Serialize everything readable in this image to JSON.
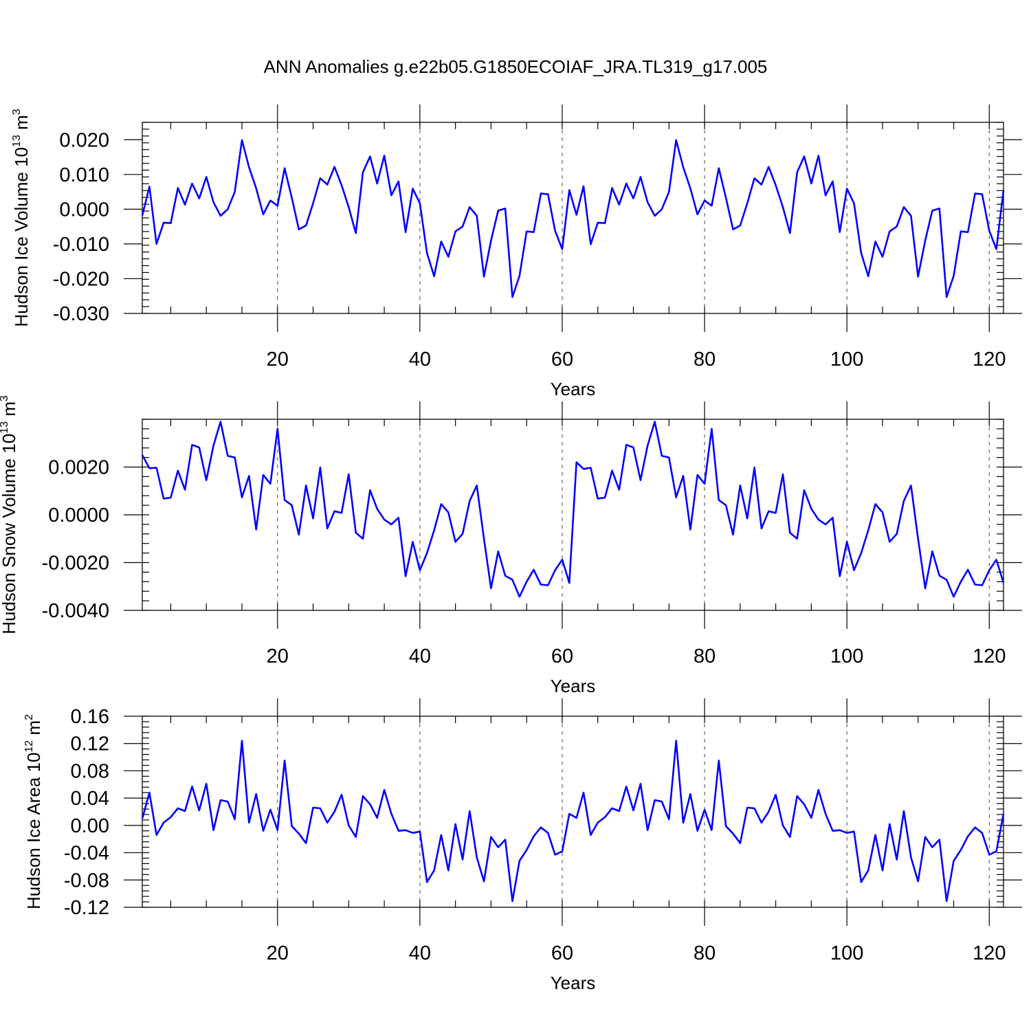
{
  "title": "ANN Anomalies g.e22b05.G1850ECOIAF_JRA.TL319_g17.005",
  "colors": {
    "series": "#0000ff",
    "axis": "#000000",
    "grid": "#555555"
  },
  "chart_data": [
    {
      "type": "line",
      "ylabel_main": "Hudson Ice Volume 10",
      "ylabel_exp": "13",
      "ylabel_unit": " m",
      "ylabel_unit_exp": "3",
      "xlabel": "Years",
      "xlim": [
        1,
        122
      ],
      "ylim": [
        -0.03,
        0.025
      ],
      "xticks": [
        20,
        40,
        60,
        80,
        100,
        120
      ],
      "xtick_labels": [
        "20",
        "40",
        "60",
        "80",
        "100",
        "120"
      ],
      "yticks": [
        -0.03,
        -0.02,
        -0.01,
        0.0,
        0.01,
        0.02
      ],
      "ytick_labels": [
        "-0.030",
        "-0.020",
        "-0.010",
        "0.000",
        "0.010",
        "0.020"
      ],
      "grid_x": [
        20,
        40,
        60,
        80,
        100,
        120
      ],
      "values": [
        -0.0018,
        0.0065,
        -0.01,
        -0.0039,
        -0.004,
        0.0061,
        0.0013,
        0.0074,
        0.0031,
        0.0093,
        0.002,
        -0.0019,
        0.0,
        0.005,
        0.0199,
        0.0121,
        0.006,
        -0.0015,
        0.0025,
        0.001,
        0.0118,
        0.0033,
        -0.0058,
        -0.0047,
        0.0017,
        0.0089,
        0.0071,
        0.0122,
        0.0069,
        0.0006,
        -0.0069,
        0.0106,
        0.0152,
        0.0074,
        0.0154,
        0.004,
        0.008,
        -0.0066,
        0.0059,
        0.0017,
        -0.0126,
        -0.0193,
        -0.0093,
        -0.0137,
        -0.0064,
        -0.005,
        0.0006,
        -0.0019,
        -0.0194,
        -0.009,
        -0.0004,
        0.0002,
        -0.0253,
        -0.0192,
        -0.0064,
        -0.0066,
        0.0045,
        0.0043,
        -0.0062,
        -0.0115,
        0.0055,
        -0.0016,
        0.0066,
        -0.0101,
        -0.0039,
        -0.004,
        0.0061,
        0.0013,
        0.0074,
        0.0031,
        0.0093,
        0.002,
        -0.0019,
        0.0,
        0.005,
        0.0199,
        0.0121,
        0.006,
        -0.0015,
        0.0025,
        0.001,
        0.0118,
        0.0033,
        -0.0058,
        -0.0047,
        0.0017,
        0.0089,
        0.0071,
        0.0122,
        0.0069,
        0.0006,
        -0.0069,
        0.0106,
        0.0152,
        0.0074,
        0.0154,
        0.004,
        0.008,
        -0.0066,
        0.0059,
        0.0017,
        -0.0126,
        -0.0193,
        -0.0093,
        -0.0137,
        -0.0064,
        -0.005,
        0.0006,
        -0.0019,
        -0.0194,
        -0.009,
        -0.0004,
        0.0002,
        -0.0253,
        -0.0192,
        -0.0064,
        -0.0066,
        0.0045,
        0.0043,
        -0.0062,
        -0.0115,
        0.0055
      ]
    },
    {
      "type": "line",
      "ylabel_main": "Hudson Snow Volume 10",
      "ylabel_exp": "13",
      "ylabel_unit": " m",
      "ylabel_unit_exp": "3",
      "xlabel": "Years",
      "xlim": [
        1,
        122
      ],
      "ylim": [
        -0.004,
        0.004
      ],
      "xticks": [
        20,
        40,
        60,
        80,
        100,
        120
      ],
      "xtick_labels": [
        "20",
        "40",
        "60",
        "80",
        "100",
        "120"
      ],
      "yticks": [
        -0.004,
        -0.002,
        0.0,
        0.002
      ],
      "ytick_labels": [
        "-0.0040",
        "-0.0020",
        "0.0000",
        "0.0020"
      ],
      "grid_x": [
        20,
        40,
        60,
        80,
        100,
        120
      ],
      "values": [
        0.0025,
        0.00195,
        0.00197,
        0.00068,
        0.00072,
        0.00185,
        0.00105,
        0.00293,
        0.00282,
        0.00145,
        0.0029,
        0.0039,
        0.00247,
        0.0024,
        0.00073,
        0.00163,
        -0.00062,
        0.00167,
        0.0013,
        0.0036,
        0.00062,
        0.0004,
        -0.00083,
        0.00123,
        -0.00015,
        0.00198,
        -0.00057,
        0.00015,
        8e-05,
        0.0017,
        -0.00075,
        -0.001,
        0.00103,
        0.00025,
        -0.0002,
        -0.0004,
        -0.00012,
        -0.00257,
        -0.00113,
        -0.00232,
        -0.0016,
        -0.00065,
        0.00045,
        0.0001,
        -0.00113,
        -0.0008,
        0.00058,
        0.00123,
        -0.001,
        -0.00308,
        -0.00153,
        -0.00255,
        -0.00272,
        -0.00343,
        -0.0028,
        -0.0023,
        -0.00292,
        -0.00295,
        -0.00232,
        -0.00188,
        -0.00285,
        0.0022,
        0.00192,
        0.00197,
        0.00068,
        0.00072,
        0.00185,
        0.00105,
        0.00293,
        0.00282,
        0.00145,
        0.0029,
        0.0039,
        0.00247,
        0.0024,
        0.00073,
        0.00163,
        -0.00062,
        0.00167,
        0.0013,
        0.0036,
        0.00062,
        0.0004,
        -0.00083,
        0.00123,
        -0.00015,
        0.00198,
        -0.00057,
        0.00015,
        8e-05,
        0.0017,
        -0.00075,
        -0.001,
        0.00103,
        0.00025,
        -0.0002,
        -0.0004,
        -0.00012,
        -0.00257,
        -0.00113,
        -0.00232,
        -0.0016,
        -0.00065,
        0.00045,
        0.0001,
        -0.00113,
        -0.0008,
        0.00058,
        0.00123,
        -0.001,
        -0.00308,
        -0.00153,
        -0.00255,
        -0.00272,
        -0.00343,
        -0.0028,
        -0.0023,
        -0.00292,
        -0.00295,
        -0.00232,
        -0.00188,
        -0.00285
      ]
    },
    {
      "type": "line",
      "ylabel_main": "Hudson Ice Area 10",
      "ylabel_exp": "12",
      "ylabel_unit": " m",
      "ylabel_unit_exp": "2",
      "xlabel": "Years",
      "xlim": [
        1,
        122
      ],
      "ylim": [
        -0.12,
        0.16
      ],
      "xticks": [
        20,
        40,
        60,
        80,
        100,
        120
      ],
      "xtick_labels": [
        "20",
        "40",
        "60",
        "80",
        "100",
        "120"
      ],
      "yticks": [
        -0.12,
        -0.08,
        -0.04,
        0.0,
        0.04,
        0.08,
        0.12,
        0.16
      ],
      "ytick_labels": [
        "-0.12",
        "-0.08",
        "-0.04",
        "0.00",
        "0.04",
        "0.08",
        "0.12",
        "0.16"
      ],
      "grid_x": [
        20,
        40,
        60,
        80,
        100,
        120
      ],
      "values": [
        0.01,
        0.048,
        -0.014,
        0.004,
        0.012,
        0.025,
        0.021,
        0.057,
        0.022,
        0.061,
        -0.007,
        0.037,
        0.035,
        0.009,
        0.124,
        0.004,
        0.046,
        -0.008,
        0.023,
        -0.007,
        0.095,
        -0.001,
        -0.012,
        -0.026,
        0.026,
        0.025,
        0.004,
        0.02,
        0.045,
        0.0,
        -0.017,
        0.043,
        0.031,
        0.011,
        0.052,
        0.017,
        -0.008,
        -0.007,
        -0.011,
        -0.009,
        -0.083,
        -0.066,
        -0.014,
        -0.066,
        0.002,
        -0.05,
        0.021,
        -0.047,
        -0.082,
        -0.017,
        -0.032,
        -0.021,
        -0.111,
        -0.052,
        -0.036,
        -0.016,
        -0.003,
        -0.011,
        -0.043,
        -0.038,
        0.017,
        0.011,
        0.048,
        -0.014,
        0.004,
        0.012,
        0.025,
        0.021,
        0.057,
        0.022,
        0.061,
        -0.007,
        0.037,
        0.035,
        0.009,
        0.124,
        0.004,
        0.046,
        -0.008,
        0.023,
        -0.007,
        0.095,
        -0.001,
        -0.012,
        -0.026,
        0.026,
        0.025,
        0.004,
        0.02,
        0.045,
        0.0,
        -0.017,
        0.043,
        0.031,
        0.011,
        0.052,
        0.017,
        -0.008,
        -0.007,
        -0.011,
        -0.009,
        -0.083,
        -0.066,
        -0.014,
        -0.066,
        0.002,
        -0.05,
        0.021,
        -0.047,
        -0.082,
        -0.017,
        -0.032,
        -0.021,
        -0.111,
        -0.052,
        -0.036,
        -0.016,
        -0.003,
        -0.011,
        -0.043,
        -0.038,
        0.017
      ]
    }
  ]
}
